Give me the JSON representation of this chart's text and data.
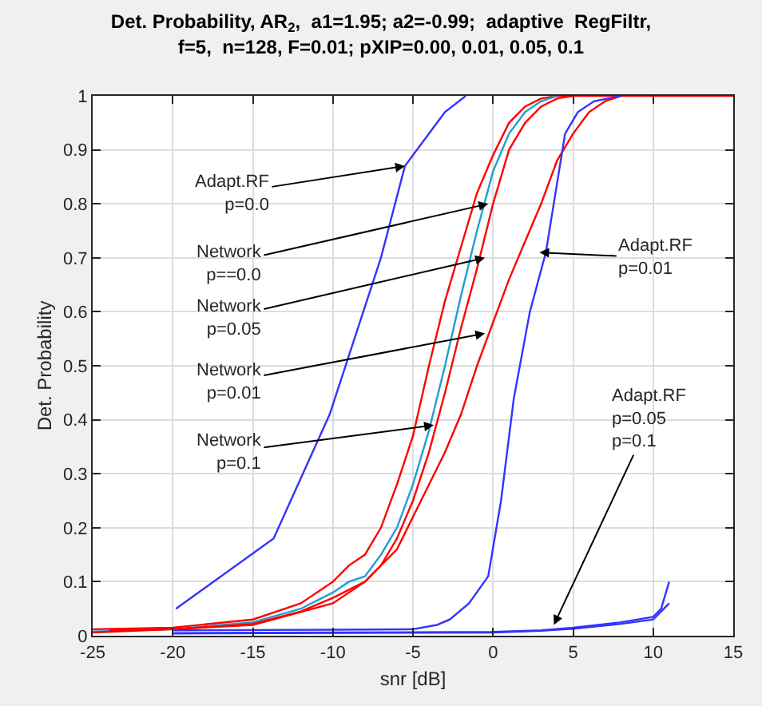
{
  "chart_data": {
    "type": "line",
    "title": "Det. Probability, AR$_{2}$,  a1=1.95; a2=-0.99;  adaptive  RegFiltr,\nf=5,  n=128, F=0.01; pXIP=0.00, 0.01, 0.05, 0.1",
    "xlabel": "snr [dB]",
    "ylabel": "Det. Probability",
    "xlim": [
      -25,
      15
    ],
    "xticks": [
      -25,
      -20,
      -15,
      -10,
      -5,
      0,
      5,
      10,
      15
    ],
    "ylim": [
      0,
      1
    ],
    "yticks": [
      0,
      0.1,
      0.2,
      0.3,
      0.4,
      0.5,
      0.6,
      0.7,
      0.8,
      0.9,
      1
    ],
    "grid": true,
    "series": [
      {
        "color": "#3333ff",
        "x": [
          -19.8,
          -13.7,
          -10.2,
          -7,
          -5.5,
          -4,
          -3,
          -1.7
        ],
        "values": [
          0.05,
          0.18,
          0.41,
          0.7,
          0.87,
          0.93,
          0.97,
          1.0
        ]
      },
      {
        "color": "#ff0000",
        "x": [
          -25,
          -20,
          -15,
          -12,
          -10,
          -9,
          -8,
          -7,
          -6,
          -5,
          -4,
          -3,
          -2,
          -1,
          0,
          1,
          2,
          3,
          4,
          15
        ],
        "values": [
          0.012,
          0.015,
          0.03,
          0.06,
          0.1,
          0.13,
          0.15,
          0.2,
          0.28,
          0.37,
          0.5,
          0.62,
          0.72,
          0.82,
          0.89,
          0.95,
          0.98,
          0.995,
          1.0,
          1.0
        ]
      },
      {
        "color": "#1f9fd0",
        "x": [
          -25,
          -20,
          -15,
          -12,
          -10,
          -9,
          -8,
          -7,
          -6,
          -5,
          -4,
          -3,
          -2,
          -1,
          0,
          1,
          2,
          3,
          4
        ],
        "values": [
          0.008,
          0.012,
          0.025,
          0.05,
          0.08,
          0.1,
          0.11,
          0.15,
          0.2,
          0.28,
          0.38,
          0.5,
          0.63,
          0.75,
          0.86,
          0.93,
          0.97,
          0.99,
          1.0
        ]
      },
      {
        "color": "#ff0000",
        "x": [
          -25,
          -20,
          -15,
          -12,
          -10,
          -8,
          -7,
          -6,
          -5,
          -4,
          -3,
          -2,
          -1,
          0,
          1,
          2,
          3,
          4,
          5
        ],
        "values": [
          0.006,
          0.012,
          0.022,
          0.045,
          0.07,
          0.1,
          0.13,
          0.18,
          0.25,
          0.34,
          0.45,
          0.57,
          0.68,
          0.8,
          0.9,
          0.95,
          0.98,
          0.995,
          1.0
        ]
      },
      {
        "color": "#ff0000",
        "x": [
          -24,
          -20,
          -15,
          -10,
          -8,
          -6,
          -5,
          -4,
          -3,
          -2,
          -1,
          0,
          1,
          2,
          3,
          4,
          5,
          6,
          7,
          8
        ],
        "values": [
          0.01,
          0.012,
          0.02,
          0.06,
          0.1,
          0.16,
          0.22,
          0.28,
          0.34,
          0.41,
          0.5,
          0.58,
          0.66,
          0.73,
          0.8,
          0.88,
          0.93,
          0.97,
          0.99,
          1.0
        ]
      },
      {
        "color": "#3333ff",
        "x": [
          -20,
          -10,
          -5,
          -3.5,
          -2.7,
          -1.5,
          -0.3,
          0.5,
          1.3,
          2.3,
          3.3,
          4.5,
          5.3,
          6.3,
          8
        ],
        "values": [
          0.01,
          0.011,
          0.012,
          0.02,
          0.03,
          0.06,
          0.11,
          0.25,
          0.44,
          0.6,
          0.71,
          0.93,
          0.97,
          0.99,
          1.0
        ]
      },
      {
        "color": "#3333ff",
        "x": [
          -20,
          -10,
          0,
          3,
          5,
          8,
          10,
          10.5,
          11
        ],
        "values": [
          0.005,
          0.006,
          0.007,
          0.01,
          0.015,
          0.025,
          0.035,
          0.05,
          0.1
        ]
      },
      {
        "color": "#3333ff",
        "x": [
          -20,
          -10,
          0,
          3,
          5,
          8,
          10,
          10.5,
          11
        ],
        "values": [
          0.004,
          0.005,
          0.006,
          0.009,
          0.013,
          0.022,
          0.03,
          0.045,
          0.06
        ]
      }
    ],
    "annotations": [
      {
        "text": "Adapt.RF\np=0.0",
        "x": -5.5,
        "y": 0.87
      },
      {
        "text": "Network\np==0.0",
        "x": -0.3,
        "y": 0.8
      },
      {
        "text": "Network\np=0.05",
        "x": -0.5,
        "y": 0.7
      },
      {
        "text": "Network\np=0.01",
        "x": -0.5,
        "y": 0.56
      },
      {
        "text": "Network\np=0.1",
        "x": -3.7,
        "y": 0.39
      },
      {
        "text": "Adapt.RF\np=0.01",
        "x": 2.9,
        "y": 0.71
      },
      {
        "text": "Adapt.RF\np=0.05\np=0.1",
        "x": 3.8,
        "y": 0.02
      }
    ]
  }
}
